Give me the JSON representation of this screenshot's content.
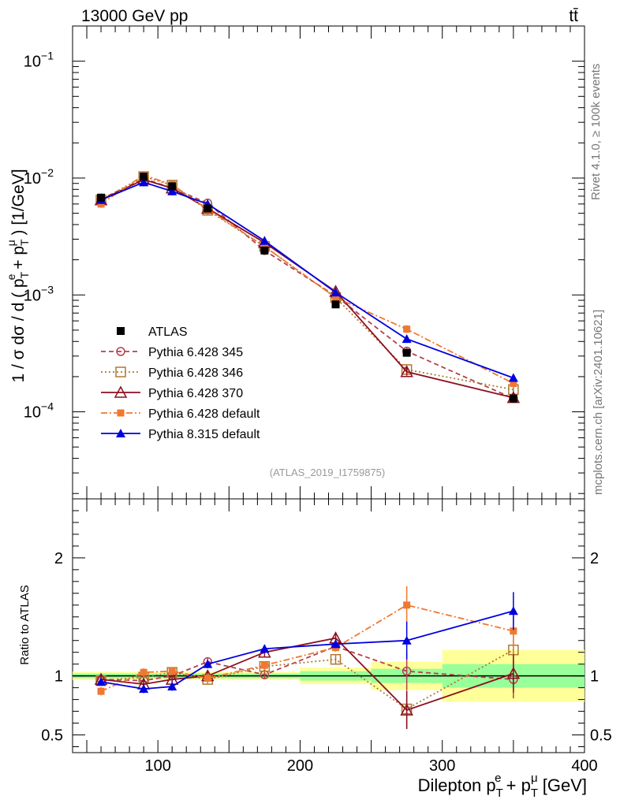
{
  "header": {
    "energy_label": "13000 GeV pp",
    "process_label": "tt̄"
  },
  "side_labels": {
    "rivet": "Rivet 4.1.0, ≥ 100k events",
    "mcplots": "mcplots.cern.ch [arXiv:2401.10621]"
  },
  "chart_data": [
    {
      "name": "main",
      "type": "line",
      "yscale": "log",
      "title": "",
      "ylabel": "1 / σ  dσ / d ( p_T^e + p_T^μ ) [1/GeV]",
      "xlabel": "Dilepton p_T^e + p_T^μ [GeV]",
      "watermark": "(ATLAS_2019_I1759875)",
      "xlim": [
        40,
        400
      ],
      "ylim": [
        1.8e-05,
        0.2
      ],
      "yticks": [
        {
          "value": 0.1,
          "base": "10",
          "exp": "−1"
        },
        {
          "value": 0.01,
          "base": "10",
          "exp": "−2"
        },
        {
          "value": 0.001,
          "base": "10",
          "exp": "−3"
        },
        {
          "value": 0.0001,
          "base": "10",
          "exp": "−4"
        }
      ],
      "x": [
        60,
        90,
        110,
        135,
        175,
        225,
        275,
        350
      ],
      "data": {
        "name": "ATLAS",
        "values": [
          0.0068,
          0.0103,
          0.0085,
          0.0055,
          0.0024,
          0.00083,
          0.00032,
          0.00013
        ]
      },
      "series": [
        {
          "name": "Pythia 6.428 345",
          "color": "#b24050",
          "dash": "6,4",
          "marker": "circle-open",
          "values": [
            0.0066,
            0.0099,
            0.0082,
            0.0061,
            0.0024,
            0.00098,
            0.00033,
            0.00013
          ]
        },
        {
          "name": "Pythia 6.428 346",
          "color": "#b07830",
          "dash": "2,3",
          "marker": "square-open",
          "values": [
            0.0065,
            0.0103,
            0.0087,
            0.0053,
            0.0026,
            0.00095,
            0.00023,
            0.000155
          ]
        },
        {
          "name": "Pythia 6.428 370",
          "color": "#8c1020",
          "dash": "",
          "marker": "triangle-open",
          "values": [
            0.0065,
            0.0097,
            0.0082,
            0.0055,
            0.0028,
            0.00107,
            0.00022,
            0.000132
          ]
        },
        {
          "name": "Pythia 6.428 default",
          "color": "#f07830",
          "dash": "8,3,2,3",
          "marker": "square",
          "values": [
            0.006,
            0.0106,
            0.0088,
            0.0054,
            0.0026,
            0.00095,
            0.00051,
            0.000175
          ]
        },
        {
          "name": "Pythia 8.315 default",
          "color": "#0000e0",
          "dash": "",
          "marker": "triangle",
          "values": [
            0.0065,
            0.0092,
            0.0077,
            0.006,
            0.0029,
            0.00105,
            0.00042,
            0.000195
          ]
        }
      ]
    },
    {
      "name": "ratio",
      "type": "line",
      "ylabel": "Ratio to ATLAS",
      "xlabel": "Dilepton p_T^e + p_T^μ [GeV]",
      "xlim": [
        40,
        400
      ],
      "ylim": [
        0.35,
        2.5
      ],
      "xticks": [
        100,
        200,
        300,
        400
      ],
      "yticks": [
        0.5,
        1,
        2
      ],
      "ytick_labels": [
        "0.5",
        "1",
        "2"
      ],
      "x": [
        60,
        90,
        110,
        135,
        175,
        225,
        275,
        350
      ],
      "uncertainty_bands": [
        {
          "x_range": [
            40,
            200
          ],
          "stat": 0.02,
          "total": 0.035
        },
        {
          "x_range": [
            200,
            250
          ],
          "stat": 0.04,
          "total": 0.07
        },
        {
          "x_range": [
            250,
            300
          ],
          "stat": 0.06,
          "total": 0.12
        },
        {
          "x_range": [
            300,
            400
          ],
          "stat": 0.1,
          "total": 0.22
        }
      ],
      "series": [
        {
          "name": "Pythia 6.428 345",
          "values": [
            0.97,
            0.96,
            1.0,
            1.12,
            1.01,
            1.25,
            1.04,
            0.97
          ]
        },
        {
          "name": "Pythia 6.428 346",
          "values": [
            0.96,
            0.99,
            1.03,
            0.97,
            1.08,
            1.14,
            0.72,
            1.22
          ]
        },
        {
          "name": "Pythia 6.428 370",
          "values": [
            0.97,
            0.93,
            0.97,
            1.0,
            1.2,
            1.32,
            0.71,
            1.02
          ]
        },
        {
          "name": "Pythia 6.428 default",
          "values": [
            0.87,
            1.03,
            1.04,
            0.98,
            1.09,
            1.24,
            1.6,
            1.38
          ]
        },
        {
          "name": "Pythia 8.315 default",
          "values": [
            0.95,
            0.89,
            0.91,
            1.1,
            1.23,
            1.27,
            1.3,
            1.55
          ]
        }
      ]
    }
  ]
}
